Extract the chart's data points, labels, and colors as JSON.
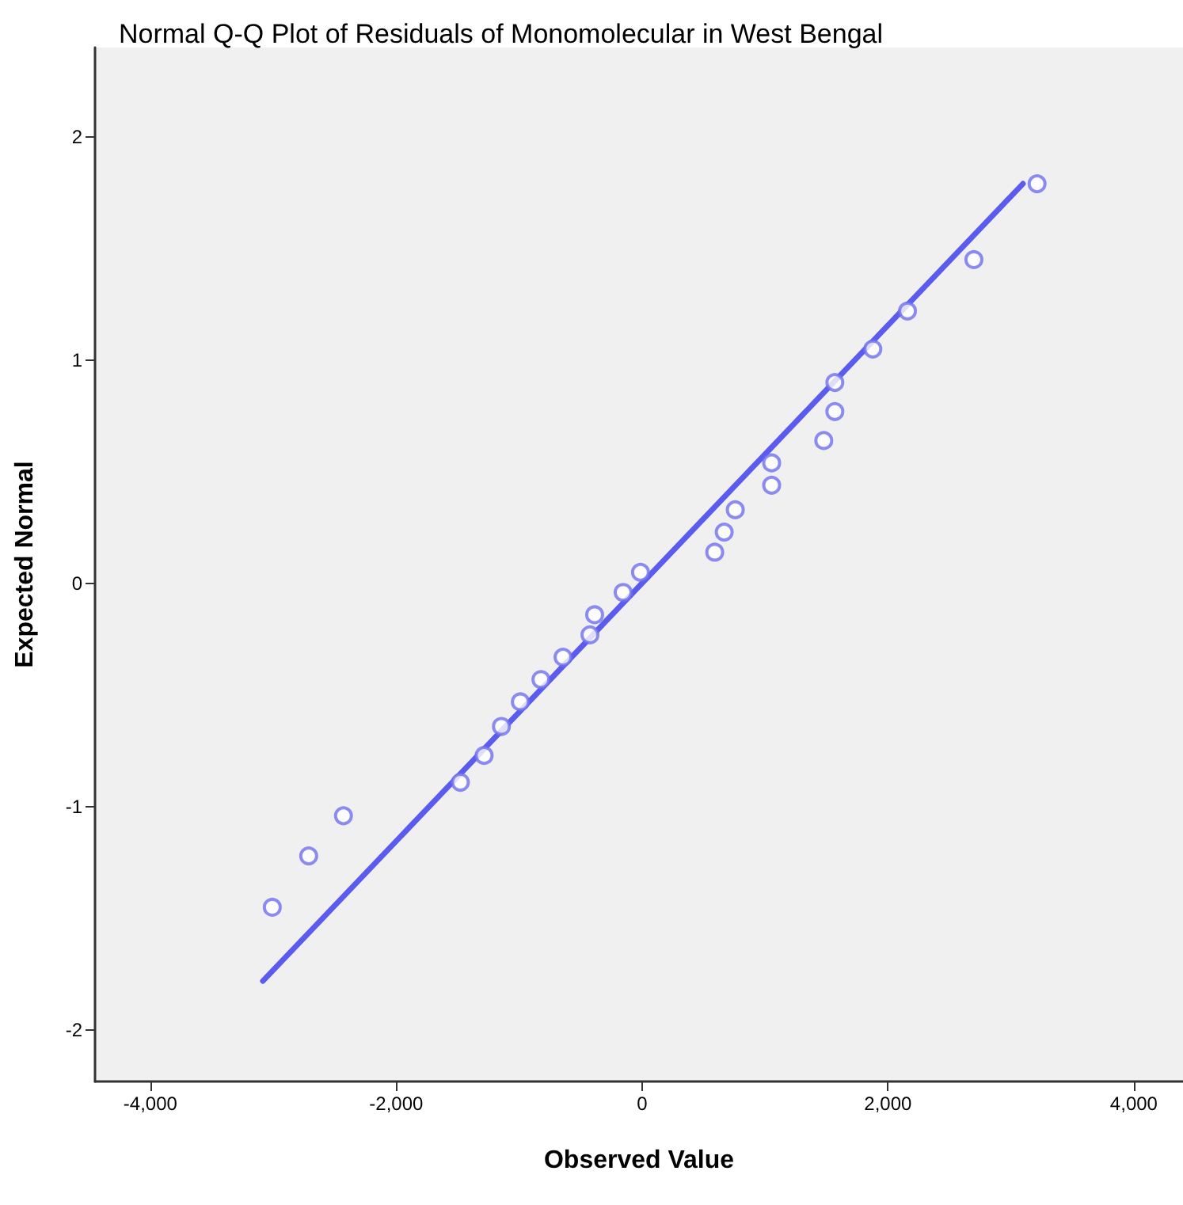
{
  "chart_data": {
    "type": "scatter",
    "title": "Normal Q-Q Plot of Residuals of Monomolecular in West Bengal",
    "xlabel": "Observed Value",
    "ylabel": "Expected Normal",
    "xlim": [
      -4450,
      4400
    ],
    "ylim": [
      -2.23,
      2.4
    ],
    "xticks": [
      {
        "value": -4000,
        "label": "-4,000"
      },
      {
        "value": -2000,
        "label": "-2,000"
      },
      0,
      {
        "value": 2000,
        "label": "2,000"
      },
      {
        "value": 4000,
        "label": "4,000"
      }
    ],
    "yticks": [
      -2,
      -1,
      0,
      1,
      2
    ],
    "grid": false,
    "series": [
      {
        "marker": "circle",
        "color": "#6f6ff0",
        "x": [
          -3008,
          -2712,
          -2429,
          -1478,
          -1285,
          -1144,
          -990,
          -823,
          -643,
          -424,
          -386,
          -154,
          -13,
          591,
          668,
          758,
          1054,
          1054,
          1478,
          1568,
          1568,
          1877,
          2159,
          2699,
          3213
        ],
        "values": [
          -1.45,
          -1.22,
          -1.04,
          -0.89,
          -0.77,
          -0.64,
          -0.53,
          -0.43,
          -0.33,
          -0.23,
          -0.14,
          -0.04,
          0.05,
          0.14,
          0.23,
          0.33,
          0.44,
          0.54,
          0.64,
          0.77,
          0.9,
          1.05,
          1.22,
          1.45,
          1.79
        ]
      },
      {
        "type": "line",
        "marker": "none",
        "line_style": "solid",
        "color": "#5b5bf0",
        "x": [
          -3085,
          3098
        ],
        "values": [
          -1.78,
          1.79
        ]
      }
    ]
  }
}
